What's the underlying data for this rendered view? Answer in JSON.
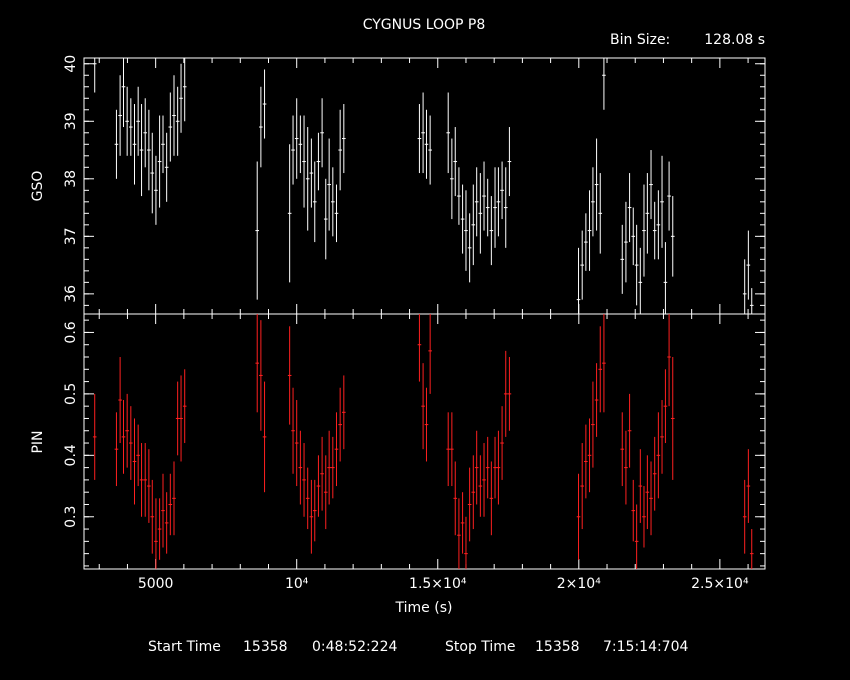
{
  "chart_data": {
    "type": "scatter",
    "title": "CYGNUS LOOP P8",
    "bin_size_label": "Bin Size:",
    "bin_size_value": "128.08 s",
    "xlabel": "Time (s)",
    "x_ticks": [
      {
        "value": 5000,
        "label": "5000"
      },
      {
        "value": 10000,
        "label": "10⁴"
      },
      {
        "value": 15000,
        "label": "1.5×10⁴"
      },
      {
        "value": 20000,
        "label": "2×10⁴"
      },
      {
        "value": 25000,
        "label": "2.5×10⁴"
      }
    ],
    "xlim": [
      2460,
      26600
    ],
    "footer": {
      "start_label": "Start Time",
      "start_day": "15358",
      "start_time": "0:48:52:224",
      "stop_label": "Stop Time",
      "stop_day": "15358",
      "stop_time": "7:15:14:704"
    },
    "panels": [
      {
        "name": "GSO",
        "ylabel": "GSO",
        "ylim": [
          35.65,
          40.1
        ],
        "y_ticks": [
          "36",
          "37",
          "38",
          "39",
          "40"
        ],
        "y_tick_values": [
          36,
          37,
          38,
          39,
          40
        ],
        "color": "#ffffff",
        "points": [
          [
            2840,
            40.0,
            0.5
          ],
          [
            3610,
            38.6,
            0.6
          ],
          [
            3740,
            39.1,
            0.7
          ],
          [
            3860,
            39.6,
            0.7
          ],
          [
            3990,
            39.0,
            0.6
          ],
          [
            4120,
            38.9,
            0.5
          ],
          [
            4250,
            38.6,
            0.7
          ],
          [
            4380,
            39.0,
            0.6
          ],
          [
            4500,
            38.5,
            0.8
          ],
          [
            4630,
            38.8,
            0.6
          ],
          [
            4760,
            38.5,
            0.7
          ],
          [
            4880,
            38.1,
            0.7
          ],
          [
            5010,
            37.8,
            0.6
          ],
          [
            5140,
            38.3,
            0.8
          ],
          [
            5260,
            38.6,
            0.5
          ],
          [
            5390,
            38.2,
            0.6
          ],
          [
            5520,
            38.9,
            0.6
          ],
          [
            5650,
            39.1,
            0.7
          ],
          [
            5780,
            39.0,
            0.6
          ],
          [
            5900,
            39.4,
            0.6
          ],
          [
            6030,
            39.6,
            0.6
          ],
          [
            8600,
            37.1,
            1.2
          ],
          [
            8730,
            38.9,
            0.7
          ],
          [
            8860,
            39.3,
            0.6
          ],
          [
            9750,
            37.4,
            1.2
          ],
          [
            9870,
            38.5,
            0.6
          ],
          [
            10000,
            38.7,
            0.7
          ],
          [
            10130,
            38.6,
            0.5
          ],
          [
            10260,
            38.3,
            0.8
          ],
          [
            10390,
            38.0,
            0.9
          ],
          [
            10520,
            38.1,
            0.6
          ],
          [
            10640,
            37.6,
            0.7
          ],
          [
            10770,
            38.3,
            0.5
          ],
          [
            10900,
            38.8,
            0.6
          ],
          [
            11030,
            37.3,
            0.7
          ],
          [
            11150,
            37.9,
            0.8
          ],
          [
            11280,
            37.6,
            0.6
          ],
          [
            11410,
            37.4,
            0.5
          ],
          [
            11540,
            38.5,
            0.7
          ],
          [
            11670,
            38.7,
            0.6
          ],
          [
            14350,
            38.7,
            0.6
          ],
          [
            14480,
            38.8,
            0.7
          ],
          [
            14600,
            38.6,
            0.6
          ],
          [
            14730,
            38.5,
            0.6
          ],
          [
            15370,
            38.8,
            0.7
          ],
          [
            15500,
            38.0,
            0.7
          ],
          [
            15620,
            38.3,
            0.6
          ],
          [
            15750,
            37.7,
            0.5
          ],
          [
            15880,
            37.3,
            0.6
          ],
          [
            16000,
            37.1,
            0.7
          ],
          [
            16130,
            36.8,
            0.6
          ],
          [
            16260,
            37.2,
            0.7
          ],
          [
            16380,
            37.6,
            0.6
          ],
          [
            16510,
            37.4,
            0.7
          ],
          [
            16640,
            37.7,
            0.6
          ],
          [
            16770,
            37.5,
            0.5
          ],
          [
            16900,
            37.1,
            0.6
          ],
          [
            17030,
            37.5,
            0.7
          ],
          [
            17150,
            37.6,
            0.6
          ],
          [
            17280,
            37.8,
            0.5
          ],
          [
            17410,
            37.5,
            0.7
          ],
          [
            17540,
            38.3,
            0.6
          ],
          [
            19990,
            35.9,
            0.9
          ],
          [
            20120,
            36.5,
            0.6
          ],
          [
            20250,
            36.9,
            0.5
          ],
          [
            20380,
            37.1,
            0.7
          ],
          [
            20500,
            37.6,
            0.6
          ],
          [
            20630,
            37.9,
            0.8
          ],
          [
            20760,
            37.4,
            0.7
          ],
          [
            20890,
            39.8,
            0.6
          ],
          [
            21540,
            36.6,
            0.6
          ],
          [
            21670,
            36.9,
            0.7
          ],
          [
            21800,
            37.5,
            0.6
          ],
          [
            21930,
            37.0,
            0.5
          ],
          [
            22050,
            36.5,
            0.7
          ],
          [
            22180,
            36.2,
            0.6
          ],
          [
            22310,
            37.1,
            0.8
          ],
          [
            22430,
            37.4,
            0.7
          ],
          [
            22560,
            37.9,
            0.6
          ],
          [
            22690,
            37.1,
            0.5
          ],
          [
            22820,
            37.2,
            0.6
          ],
          [
            22950,
            37.6,
            0.8
          ],
          [
            23070,
            36.2,
            0.7
          ],
          [
            23200,
            37.7,
            0.6
          ],
          [
            23330,
            37.0,
            0.7
          ],
          [
            25880,
            36.0,
            0.6
          ],
          [
            26010,
            36.5,
            0.6
          ],
          [
            26130,
            35.8,
            0.3
          ]
        ]
      },
      {
        "name": "PIN",
        "ylabel": "PIN",
        "ylim": [
          0.215,
          0.63
        ],
        "y_ticks": [
          "0.3",
          "0.4",
          "0.5",
          "0.6"
        ],
        "y_tick_values": [
          0.3,
          0.4,
          0.5,
          0.6
        ],
        "color": "#ff2020",
        "points": [
          [
            2840,
            0.43,
            0.07
          ],
          [
            3610,
            0.41,
            0.06
          ],
          [
            3740,
            0.49,
            0.07
          ],
          [
            3860,
            0.43,
            0.06
          ],
          [
            3990,
            0.44,
            0.06
          ],
          [
            4120,
            0.42,
            0.06
          ],
          [
            4250,
            0.39,
            0.07
          ],
          [
            4380,
            0.4,
            0.05
          ],
          [
            4500,
            0.36,
            0.06
          ],
          [
            4630,
            0.36,
            0.06
          ],
          [
            4760,
            0.35,
            0.06
          ],
          [
            4880,
            0.3,
            0.06
          ],
          [
            5010,
            0.26,
            0.07
          ],
          [
            5140,
            0.28,
            0.05
          ],
          [
            5260,
            0.31,
            0.06
          ],
          [
            5390,
            0.29,
            0.05
          ],
          [
            5520,
            0.32,
            0.05
          ],
          [
            5650,
            0.33,
            0.06
          ],
          [
            5780,
            0.46,
            0.06
          ],
          [
            5900,
            0.46,
            0.07
          ],
          [
            6030,
            0.48,
            0.06
          ],
          [
            8600,
            0.55,
            0.08
          ],
          [
            8730,
            0.53,
            0.09
          ],
          [
            8860,
            0.43,
            0.09
          ],
          [
            9750,
            0.53,
            0.08
          ],
          [
            9870,
            0.44,
            0.07
          ],
          [
            10000,
            0.42,
            0.07
          ],
          [
            10130,
            0.38,
            0.06
          ],
          [
            10260,
            0.36,
            0.06
          ],
          [
            10390,
            0.33,
            0.05
          ],
          [
            10520,
            0.3,
            0.06
          ],
          [
            10640,
            0.31,
            0.05
          ],
          [
            10770,
            0.35,
            0.05
          ],
          [
            10900,
            0.37,
            0.06
          ],
          [
            11030,
            0.34,
            0.06
          ],
          [
            11150,
            0.38,
            0.06
          ],
          [
            11280,
            0.38,
            0.05
          ],
          [
            11410,
            0.41,
            0.06
          ],
          [
            11540,
            0.45,
            0.06
          ],
          [
            11670,
            0.47,
            0.06
          ],
          [
            14350,
            0.58,
            0.06
          ],
          [
            14480,
            0.48,
            0.07
          ],
          [
            14600,
            0.45,
            0.06
          ],
          [
            14730,
            0.57,
            0.07
          ],
          [
            15370,
            0.41,
            0.06
          ],
          [
            15500,
            0.41,
            0.06
          ],
          [
            15620,
            0.33,
            0.06
          ],
          [
            15750,
            0.27,
            0.06
          ],
          [
            15880,
            0.29,
            0.05
          ],
          [
            16000,
            0.24,
            0.06
          ],
          [
            16130,
            0.32,
            0.06
          ],
          [
            16260,
            0.34,
            0.06
          ],
          [
            16380,
            0.38,
            0.06
          ],
          [
            16510,
            0.35,
            0.05
          ],
          [
            16640,
            0.36,
            0.06
          ],
          [
            16770,
            0.38,
            0.05
          ],
          [
            16900,
            0.33,
            0.06
          ],
          [
            17030,
            0.38,
            0.05
          ],
          [
            17150,
            0.38,
            0.06
          ],
          [
            17280,
            0.42,
            0.06
          ],
          [
            17410,
            0.5,
            0.07
          ],
          [
            17540,
            0.5,
            0.06
          ],
          [
            19990,
            0.3,
            0.07
          ],
          [
            20120,
            0.35,
            0.07
          ],
          [
            20250,
            0.39,
            0.06
          ],
          [
            20380,
            0.4,
            0.06
          ],
          [
            20500,
            0.45,
            0.07
          ],
          [
            20630,
            0.49,
            0.06
          ],
          [
            20760,
            0.54,
            0.07
          ],
          [
            20890,
            0.55,
            0.08
          ],
          [
            21540,
            0.41,
            0.06
          ],
          [
            21670,
            0.38,
            0.06
          ],
          [
            21800,
            0.44,
            0.06
          ],
          [
            21930,
            0.31,
            0.05
          ],
          [
            22050,
            0.26,
            0.06
          ],
          [
            22180,
            0.35,
            0.06
          ],
          [
            22310,
            0.3,
            0.05
          ],
          [
            22430,
            0.34,
            0.06
          ],
          [
            22560,
            0.33,
            0.06
          ],
          [
            22690,
            0.37,
            0.06
          ],
          [
            22820,
            0.4,
            0.07
          ],
          [
            22950,
            0.43,
            0.06
          ],
          [
            23070,
            0.48,
            0.06
          ],
          [
            23200,
            0.56,
            0.08
          ],
          [
            23330,
            0.46,
            0.1
          ],
          [
            25880,
            0.3,
            0.06
          ],
          [
            26010,
            0.35,
            0.06
          ],
          [
            26130,
            0.24,
            0.04
          ]
        ]
      }
    ]
  }
}
